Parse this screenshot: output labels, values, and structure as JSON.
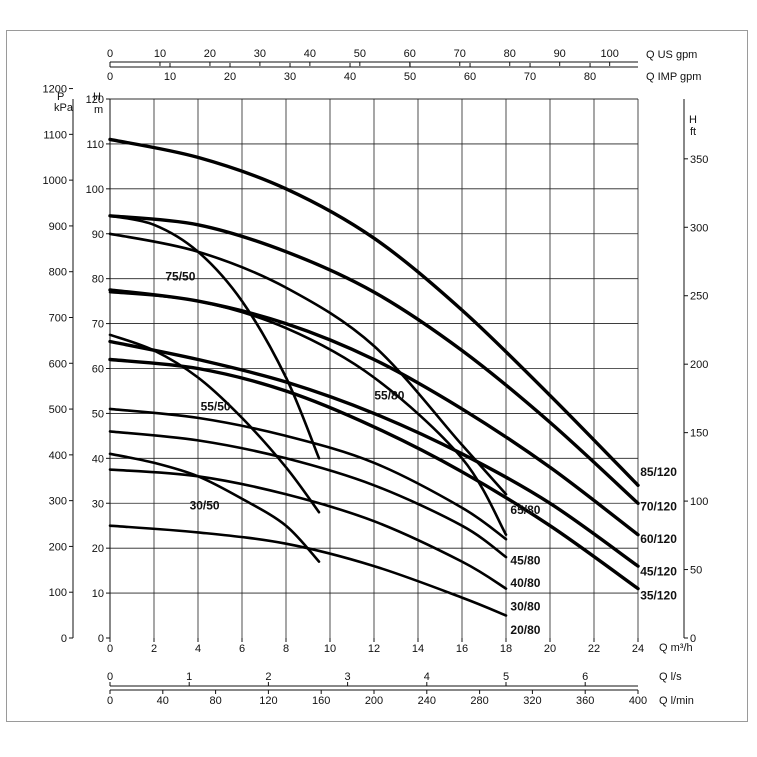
{
  "chart_data": {
    "type": "line",
    "axes": {
      "us_gpm": {
        "label": "Q US gpm",
        "ticks": [
          "0",
          "10",
          "20",
          "30",
          "40",
          "50",
          "60",
          "70",
          "80",
          "90",
          "100"
        ]
      },
      "imp_gpm": {
        "label": "Q IMP gpm",
        "ticks": [
          "0",
          "10",
          "20",
          "30",
          "40",
          "50",
          "60",
          "70",
          "80"
        ]
      },
      "m3h": {
        "label": "Q m³/h",
        "ticks": [
          "0",
          "2",
          "4",
          "6",
          "8",
          "10",
          "12",
          "14",
          "16",
          "18",
          "20",
          "22",
          "24"
        ]
      },
      "ls": {
        "label": "Q l/s",
        "ticks": [
          "0",
          "1",
          "2",
          "3",
          "4",
          "5",
          "6"
        ]
      },
      "lmin": {
        "label": "Q l/min",
        "ticks": [
          "0",
          "40",
          "80",
          "120",
          "160",
          "200",
          "240",
          "280",
          "320",
          "360",
          "400"
        ]
      },
      "kpa": {
        "label_p": "P",
        "label_unit": "kPa",
        "ticks": [
          "0",
          "100",
          "200",
          "300",
          "400",
          "500",
          "600",
          "700",
          "800",
          "900",
          "1000",
          "1100",
          "1200"
        ]
      },
      "head_m": {
        "label_h": "H",
        "label_unit": "m",
        "ticks": [
          "0",
          "10",
          "20",
          "30",
          "40",
          "50",
          "60",
          "70",
          "80",
          "90",
          "100",
          "110",
          "120"
        ]
      },
      "head_ft": {
        "label_h": "H",
        "label_unit": "ft",
        "ticks": [
          "0",
          "50",
          "100",
          "150",
          "200",
          "250",
          "300",
          "350"
        ]
      }
    },
    "xlim_m3h": [
      0,
      24
    ],
    "ylim_m": [
      0,
      120
    ],
    "grid": true,
    "series": [
      {
        "name": "85/120",
        "bold": true,
        "points": [
          [
            0,
            111
          ],
          [
            4,
            107
          ],
          [
            8,
            100
          ],
          [
            12,
            89
          ],
          [
            16,
            73
          ],
          [
            20,
            54
          ],
          [
            24,
            34
          ]
        ]
      },
      {
        "name": "70/120",
        "bold": true,
        "points": [
          [
            0,
            94
          ],
          [
            4,
            92
          ],
          [
            8,
            86
          ],
          [
            12,
            77
          ],
          [
            16,
            64
          ],
          [
            20,
            48
          ],
          [
            24,
            30
          ]
        ]
      },
      {
        "name": "60/120",
        "bold": true,
        "points": [
          [
            0,
            77.5
          ],
          [
            4,
            75
          ],
          [
            8,
            70
          ],
          [
            12,
            62
          ],
          [
            16,
            51
          ],
          [
            20,
            38
          ],
          [
            24,
            23
          ]
        ]
      },
      {
        "name": "45/120",
        "bold": true,
        "points": [
          [
            0,
            66
          ],
          [
            4,
            62
          ],
          [
            8,
            57
          ],
          [
            12,
            50
          ],
          [
            16,
            41
          ],
          [
            20,
            30
          ],
          [
            24,
            16
          ]
        ]
      },
      {
        "name": "35/120",
        "bold": true,
        "points": [
          [
            0,
            62
          ],
          [
            4,
            60
          ],
          [
            8,
            55
          ],
          [
            12,
            47
          ],
          [
            16,
            37
          ],
          [
            20,
            25
          ],
          [
            24,
            11
          ]
        ]
      },
      {
        "name": "75/50",
        "bold": false,
        "points": [
          [
            0,
            94
          ],
          [
            2,
            92
          ],
          [
            4,
            86
          ],
          [
            6,
            75
          ],
          [
            8,
            58
          ],
          [
            9.5,
            40
          ]
        ]
      },
      {
        "name": "55/50",
        "bold": false,
        "points": [
          [
            0,
            67.5
          ],
          [
            2,
            64
          ],
          [
            4,
            58
          ],
          [
            6,
            49
          ],
          [
            8,
            38
          ],
          [
            9.5,
            28
          ]
        ]
      },
      {
        "name": "30/50",
        "bold": false,
        "points": [
          [
            0,
            41
          ],
          [
            2,
            39
          ],
          [
            4,
            36
          ],
          [
            6,
            31
          ],
          [
            8,
            25
          ],
          [
            9.5,
            17
          ]
        ]
      },
      {
        "name": "65/80",
        "bold": false,
        "points": [
          [
            0,
            90
          ],
          [
            4,
            86
          ],
          [
            8,
            78
          ],
          [
            12,
            65
          ],
          [
            16,
            43
          ],
          [
            18,
            32
          ]
        ]
      },
      {
        "name": "55/80",
        "bold": false,
        "points": [
          [
            0,
            77
          ],
          [
            4,
            75
          ],
          [
            8,
            69
          ],
          [
            12,
            58
          ],
          [
            16,
            40
          ],
          [
            18,
            23
          ]
        ]
      },
      {
        "name": "45/80",
        "bold": false,
        "points": [
          [
            0,
            51
          ],
          [
            4,
            49
          ],
          [
            8,
            45
          ],
          [
            12,
            39
          ],
          [
            16,
            29
          ],
          [
            18,
            22
          ]
        ]
      },
      {
        "name": "40/80",
        "bold": false,
        "points": [
          [
            0,
            46
          ],
          [
            4,
            44
          ],
          [
            8,
            40
          ],
          [
            12,
            34
          ],
          [
            16,
            25
          ],
          [
            18,
            18
          ]
        ]
      },
      {
        "name": "30/80",
        "bold": false,
        "points": [
          [
            0,
            37.5
          ],
          [
            4,
            36
          ],
          [
            8,
            32
          ],
          [
            12,
            26
          ],
          [
            16,
            17
          ],
          [
            18,
            11
          ]
        ]
      },
      {
        "name": "20/80",
        "bold": false,
        "points": [
          [
            0,
            25
          ],
          [
            4,
            23.5
          ],
          [
            8,
            21
          ],
          [
            12,
            16
          ],
          [
            16,
            9
          ],
          [
            18,
            5
          ]
        ]
      }
    ],
    "labels": [
      {
        "series": "75/50",
        "at": [
          3.2,
          80.5
        ],
        "anchor": "middle"
      },
      {
        "series": "55/50",
        "at": [
          4.8,
          51.5
        ],
        "anchor": "middle"
      },
      {
        "series": "30/50",
        "at": [
          4.3,
          29.5
        ],
        "anchor": "middle"
      },
      {
        "series": "55/80",
        "at": [
          12.7,
          54
        ],
        "anchor": "middle"
      },
      {
        "series": "65/80",
        "at": [
          18.2,
          28.5
        ],
        "anchor": "start"
      },
      {
        "series": "45/80",
        "at": [
          18.2,
          17.3
        ],
        "anchor": "start"
      },
      {
        "series": "40/80",
        "at": [
          18.2,
          12.3
        ],
        "anchor": "start"
      },
      {
        "series": "30/80",
        "at": [
          18.2,
          7.0
        ],
        "anchor": "start"
      },
      {
        "series": "20/80",
        "at": [
          18.2,
          1.8
        ],
        "anchor": "start"
      },
      {
        "series": "85/120",
        "at": [
          24.1,
          37.0
        ],
        "anchor": "start"
      },
      {
        "series": "70/120",
        "at": [
          24.1,
          29.3
        ],
        "anchor": "start"
      },
      {
        "series": "60/120",
        "at": [
          24.1,
          22.0
        ],
        "anchor": "start"
      },
      {
        "series": "45/120",
        "at": [
          24.1,
          14.8
        ],
        "anchor": "start"
      },
      {
        "series": "35/120",
        "at": [
          24.1,
          9.5
        ],
        "anchor": "start"
      }
    ]
  }
}
